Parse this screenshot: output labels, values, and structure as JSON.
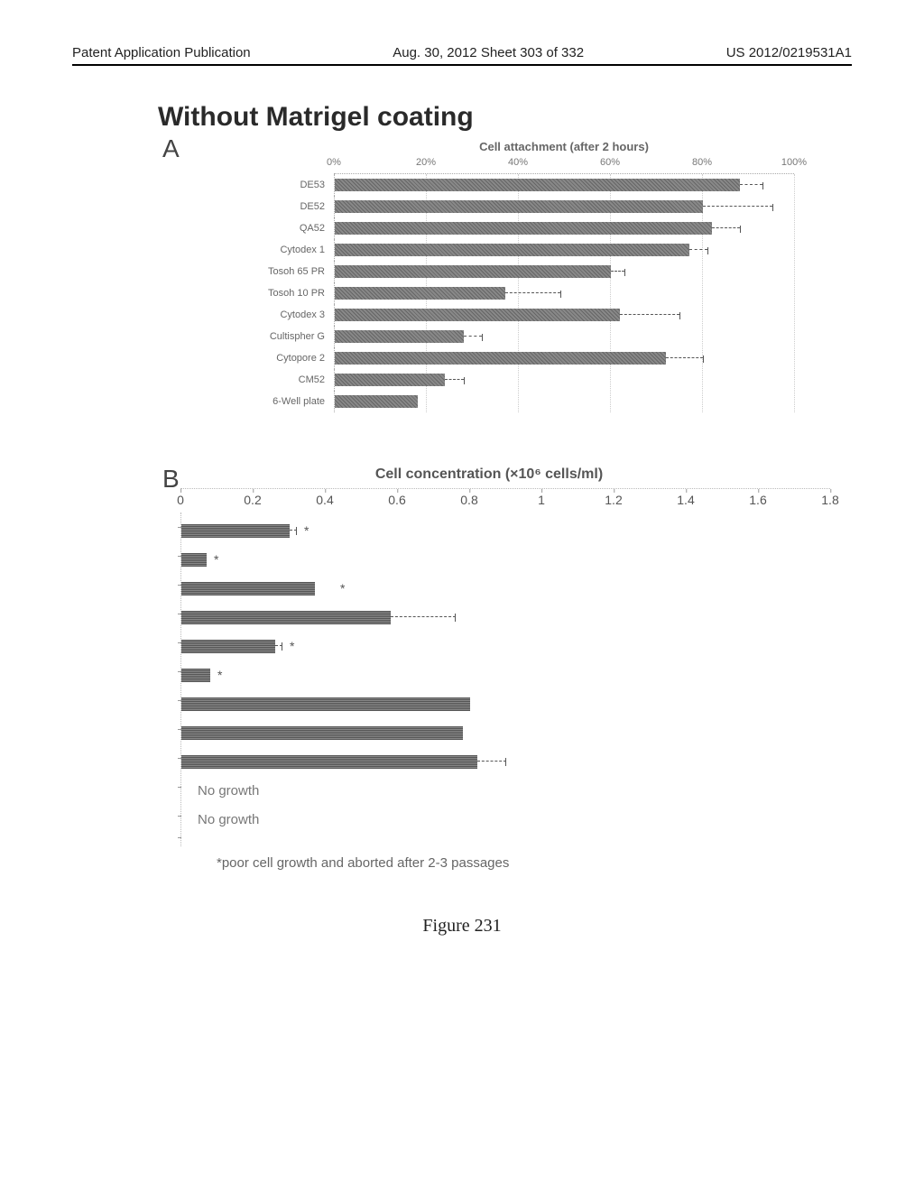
{
  "header": {
    "left": "Patent Application Publication",
    "center": "Aug. 30, 2012  Sheet 303 of 332",
    "right": "US 2012/0219531A1"
  },
  "main_title": "Without Matrigel coating",
  "panelA": {
    "label": "A",
    "title": "Cell attachment (after 2 hours)",
    "x_ticks": [
      "0%",
      "20%",
      "40%",
      "60%",
      "80%",
      "100%"
    ],
    "x_max_pct": 100,
    "bar_fill": "#7a7a7a",
    "grid_color": "#cccccc",
    "categories": [
      {
        "label": "DE53",
        "value": 88,
        "err": 5
      },
      {
        "label": "DE52",
        "value": 80,
        "err": 15
      },
      {
        "label": "QA52",
        "value": 82,
        "err": 6
      },
      {
        "label": "Cytodex 1",
        "value": 77,
        "err": 4
      },
      {
        "label": "Tosoh 65 PR",
        "value": 60,
        "err": 3
      },
      {
        "label": "Tosoh 10 PR",
        "value": 37,
        "err": 12
      },
      {
        "label": "Cytodex 3",
        "value": 62,
        "err": 13
      },
      {
        "label": "Cultispher G",
        "value": 28,
        "err": 4
      },
      {
        "label": "Cytopore 2",
        "value": 72,
        "err": 8
      },
      {
        "label": "CM52",
        "value": 24,
        "err": 4
      },
      {
        "label": "6-Well plate",
        "value": 18,
        "err": 0
      }
    ]
  },
  "panelB": {
    "label": "B",
    "title": "Cell concentration (×10⁶ cells/ml)",
    "x_ticks": [
      "0",
      "0.2",
      "0.4",
      "0.6",
      "0.8",
      "1",
      "1.2",
      "1.4",
      "1.6",
      "1.8"
    ],
    "x_max": 1.8,
    "bar_fill": "#7a7a7a",
    "rows": [
      {
        "value": 0.3,
        "err": 0.02,
        "star": true
      },
      {
        "value": 0.07,
        "err": 0,
        "star": true
      },
      {
        "value": 0.37,
        "err": 0,
        "star": true,
        "star_gap": 0.05
      },
      {
        "value": 0.58,
        "err": 0.18
      },
      {
        "value": 0.26,
        "err": 0.02,
        "star": true
      },
      {
        "value": 0.08,
        "err": 0,
        "star": true
      },
      {
        "value": 0.8,
        "err": 0
      },
      {
        "value": 0.78,
        "err": 0
      },
      {
        "value": 0.82,
        "err": 0.08
      },
      {
        "text": "No growth"
      },
      {
        "text": "No growth"
      }
    ]
  },
  "footnote": "*poor cell growth and aborted after 2-3 passages",
  "figure_caption": "Figure 231"
}
